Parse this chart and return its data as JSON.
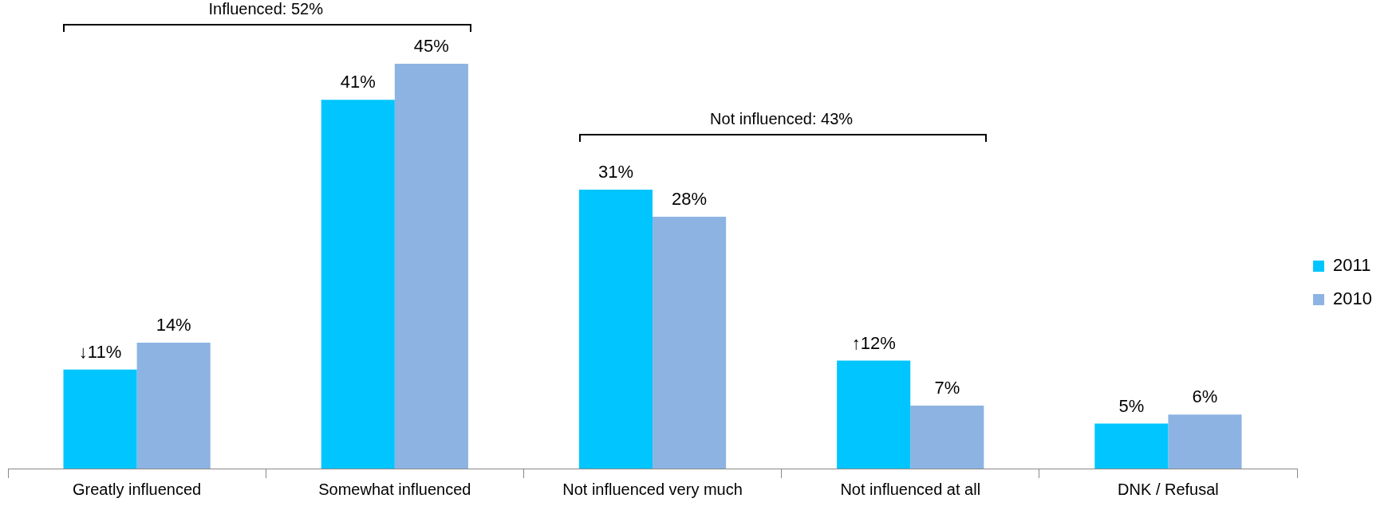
{
  "chart_data": {
    "type": "bar",
    "categories": [
      "Greatly influenced",
      "Somewhat influenced",
      "Not influenced very much",
      "Not influenced at all",
      "DNK / Refusal"
    ],
    "series": [
      {
        "name": "2011",
        "color": "#00c5ff",
        "values": [
          11,
          41,
          31,
          12,
          5
        ],
        "value_labels": [
          "↓11%",
          "41%",
          "31%",
          "↑12%",
          "5%"
        ]
      },
      {
        "name": "2010",
        "color": "#8db3e2",
        "values": [
          14,
          45,
          28,
          7,
          6
        ],
        "value_labels": [
          "14%",
          "45%",
          "28%",
          "7%",
          "6%"
        ]
      }
    ],
    "annotations": [
      "Influenced: 52%",
      "Not influenced: 43%"
    ],
    "legend": "right",
    "grid": false,
    "tick_labels": "x"
  }
}
